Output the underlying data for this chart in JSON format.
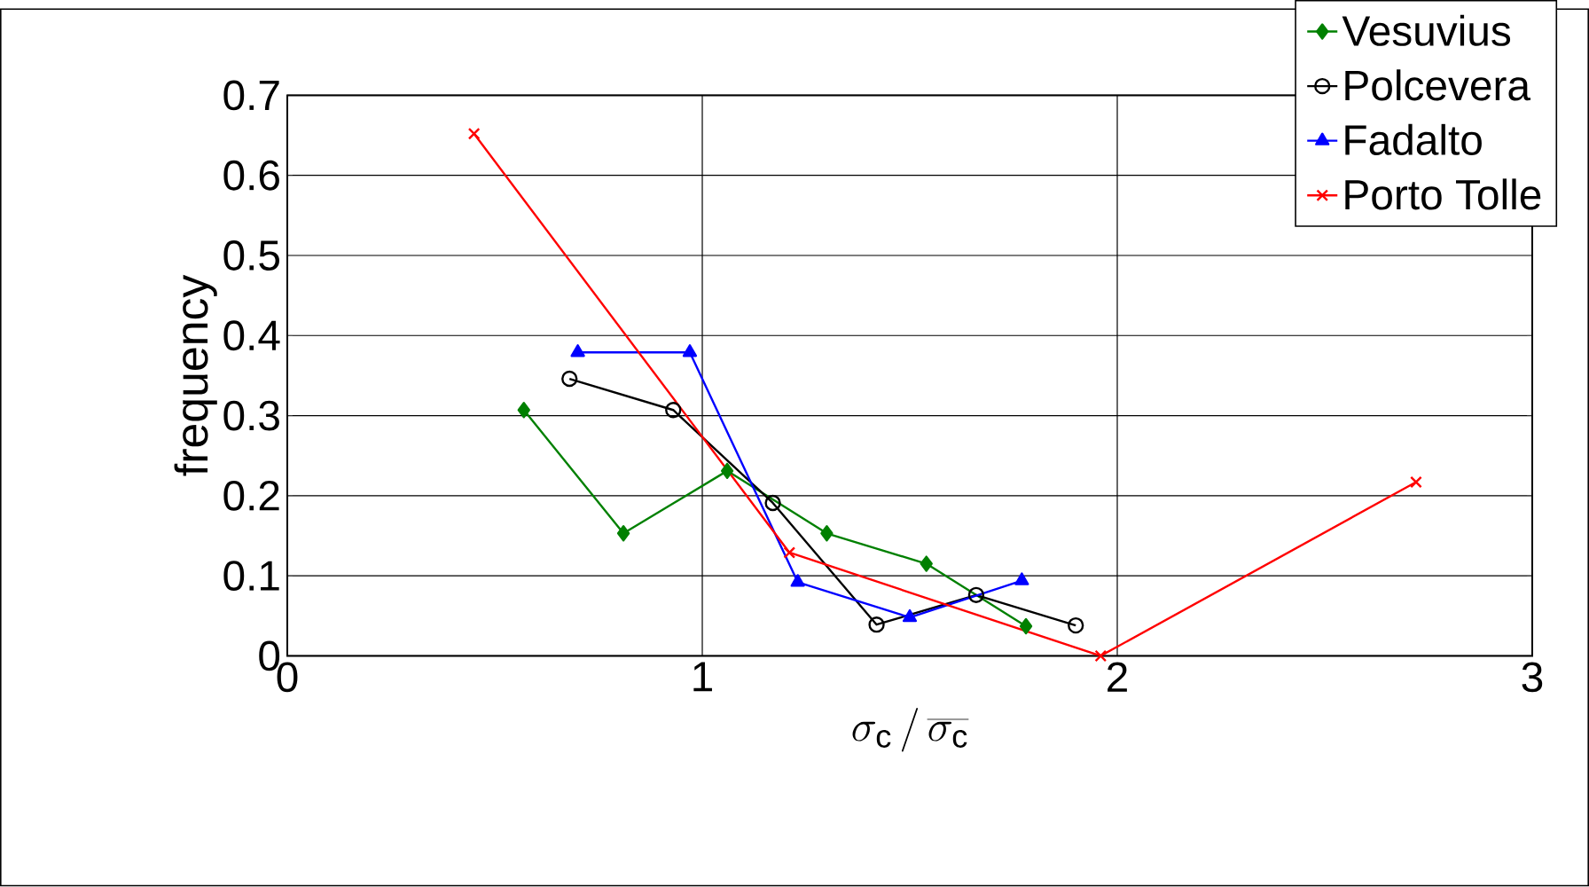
{
  "chart_data": {
    "type": "line",
    "xlabel": "\\sigma_{\\mathrm{c}}\\, / \\,\\overline{\\sigma_{\\mathrm{c}}}",
    "ylabel": "frequency",
    "xlim": [
      0,
      3
    ],
    "ylim": [
      0,
      0.7
    ],
    "xticks": [
      0,
      1,
      2,
      3
    ],
    "yticks": [
      0,
      0.1,
      0.2,
      0.3,
      0.4,
      0.5,
      0.6,
      0.7
    ],
    "grid": true,
    "legend": "top right",
    "series": [
      {
        "name": "Vesuvius",
        "color": "#008000",
        "marker": "diamond",
        "x": [
          0.57,
          0.81,
          1.06,
          1.3,
          1.54,
          1.78
        ],
        "values": [
          0.307,
          0.153,
          0.231,
          0.153,
          0.115,
          0.037
        ]
      },
      {
        "name": "Polcevera",
        "color": "#000000",
        "marker": "circle",
        "x": [
          0.68,
          0.93,
          1.17,
          1.42,
          1.66,
          1.9
        ],
        "values": [
          0.346,
          0.307,
          0.191,
          0.039,
          0.076,
          0.038
        ]
      },
      {
        "name": "Fadalto",
        "color": "#0000ff",
        "marker": "triangle",
        "x": [
          0.7,
          0.97,
          1.23,
          1.5,
          1.77
        ],
        "values": [
          0.379,
          0.379,
          0.092,
          0.048,
          0.094
        ]
      },
      {
        "name": "Porto Tolle",
        "color": "#ff0000",
        "marker": "cross",
        "x": [
          0.45,
          1.21,
          1.96,
          2.72
        ],
        "values": [
          0.652,
          0.129,
          0.0,
          0.217
        ]
      }
    ]
  }
}
